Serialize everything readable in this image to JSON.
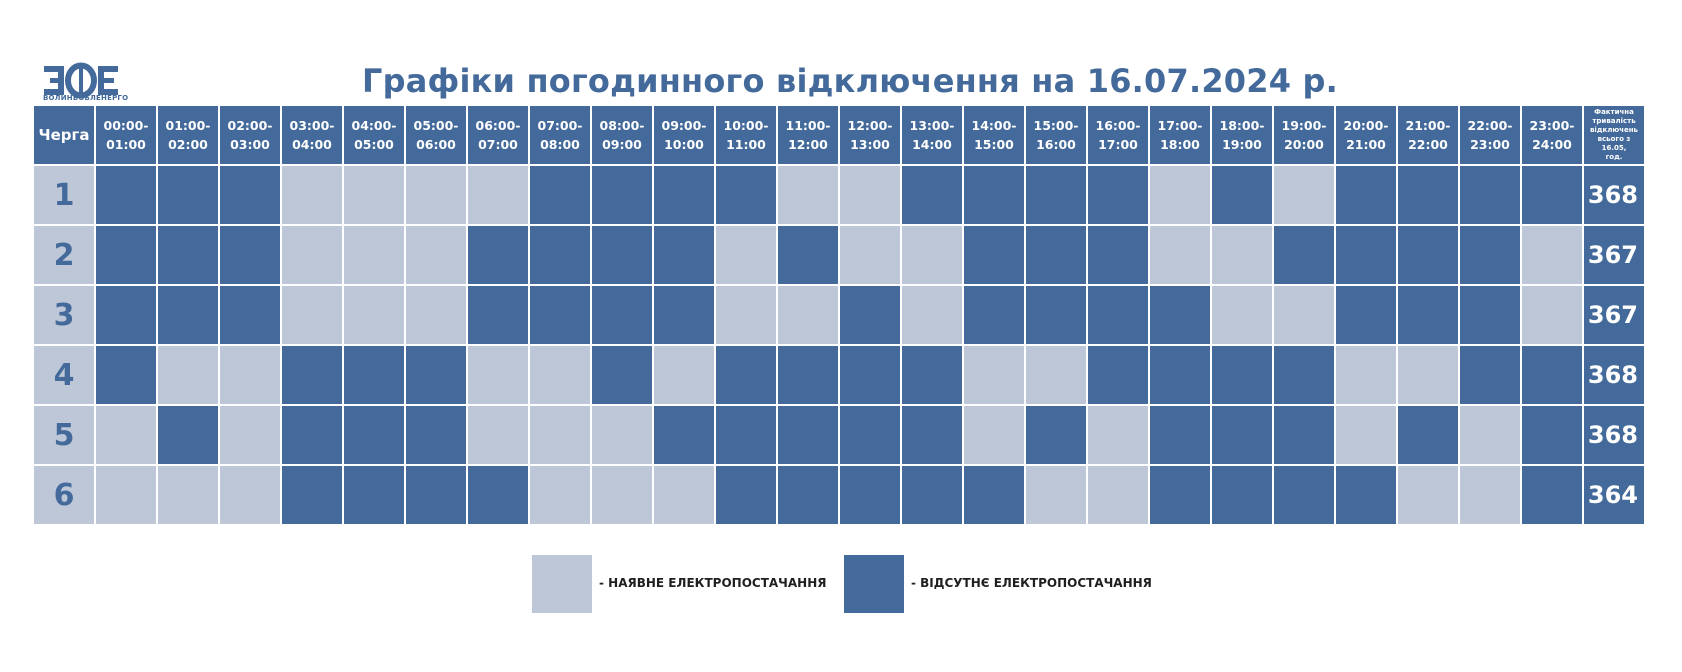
{
  "logo": {
    "mark": "ЗОЕ",
    "word": "ВОЛИНЬОБЛЕНЕРГО"
  },
  "title": "Графіки погодинного відключення на 16.07.2024 р.",
  "header": {
    "queue": "Черга",
    "hours": [
      [
        "00:00-",
        "01:00"
      ],
      [
        "01:00-",
        "02:00"
      ],
      [
        "02:00-",
        "03:00"
      ],
      [
        "03:00-",
        "04:00"
      ],
      [
        "04:00-",
        "05:00"
      ],
      [
        "05:00-",
        "06:00"
      ],
      [
        "06:00-",
        "07:00"
      ],
      [
        "07:00-",
        "08:00"
      ],
      [
        "08:00-",
        "09:00"
      ],
      [
        "09:00-",
        "10:00"
      ],
      [
        "10:00-",
        "11:00"
      ],
      [
        "11:00-",
        "12:00"
      ],
      [
        "12:00-",
        "13:00"
      ],
      [
        "13:00-",
        "14:00"
      ],
      [
        "14:00-",
        "15:00"
      ],
      [
        "15:00-",
        "16:00"
      ],
      [
        "16:00-",
        "17:00"
      ],
      [
        "17:00-",
        "18:00"
      ],
      [
        "18:00-",
        "19:00"
      ],
      [
        "19:00-",
        "20:00"
      ],
      [
        "20:00-",
        "21:00"
      ],
      [
        "21:00-",
        "22:00"
      ],
      [
        "22:00-",
        "23:00"
      ],
      [
        "23:00-",
        "24:00"
      ]
    ],
    "total": [
      "Фактична",
      "тривалість",
      "відключень",
      "всього з 16.05,",
      "год."
    ]
  },
  "rows": [
    {
      "queue": "1",
      "total": "368",
      "slots": [
        1,
        1,
        1,
        0,
        0,
        0,
        0,
        1,
        1,
        1,
        1,
        0,
        0,
        1,
        1,
        1,
        1,
        0,
        1,
        0,
        1,
        1,
        1,
        1
      ]
    },
    {
      "queue": "2",
      "total": "367",
      "slots": [
        1,
        1,
        1,
        0,
        0,
        0,
        1,
        1,
        1,
        1,
        0,
        1,
        0,
        0,
        1,
        1,
        1,
        0,
        0,
        1,
        1,
        1,
        1,
        0
      ]
    },
    {
      "queue": "3",
      "total": "367",
      "slots": [
        1,
        1,
        1,
        0,
        0,
        0,
        1,
        1,
        1,
        1,
        0,
        0,
        1,
        0,
        1,
        1,
        1,
        1,
        0,
        0,
        1,
        1,
        1,
        0
      ]
    },
    {
      "queue": "4",
      "total": "368",
      "slots": [
        1,
        0,
        0,
        1,
        1,
        1,
        0,
        0,
        1,
        0,
        1,
        1,
        1,
        1,
        0,
        0,
        1,
        1,
        1,
        1,
        0,
        0,
        1,
        1
      ]
    },
    {
      "queue": "5",
      "total": "368",
      "slots": [
        0,
        1,
        0,
        1,
        1,
        1,
        0,
        0,
        0,
        1,
        1,
        1,
        1,
        1,
        0,
        1,
        0,
        1,
        1,
        1,
        0,
        1,
        0,
        1
      ]
    },
    {
      "queue": "6",
      "total": "364",
      "slots": [
        0,
        0,
        0,
        1,
        1,
        1,
        1,
        0,
        0,
        0,
        1,
        1,
        1,
        1,
        1,
        0,
        0,
        1,
        1,
        1,
        1,
        0,
        0,
        1
      ]
    }
  ],
  "legend": {
    "on": "- НАЯВНЕ ЕЛЕКТРОПОСТАЧАННЯ",
    "off": "- ВІДСУТНЄ ЕЛЕКТРОПОСТАЧАННЯ"
  },
  "colors": {
    "off": "#436a9a",
    "on": "#bec7d7"
  }
}
